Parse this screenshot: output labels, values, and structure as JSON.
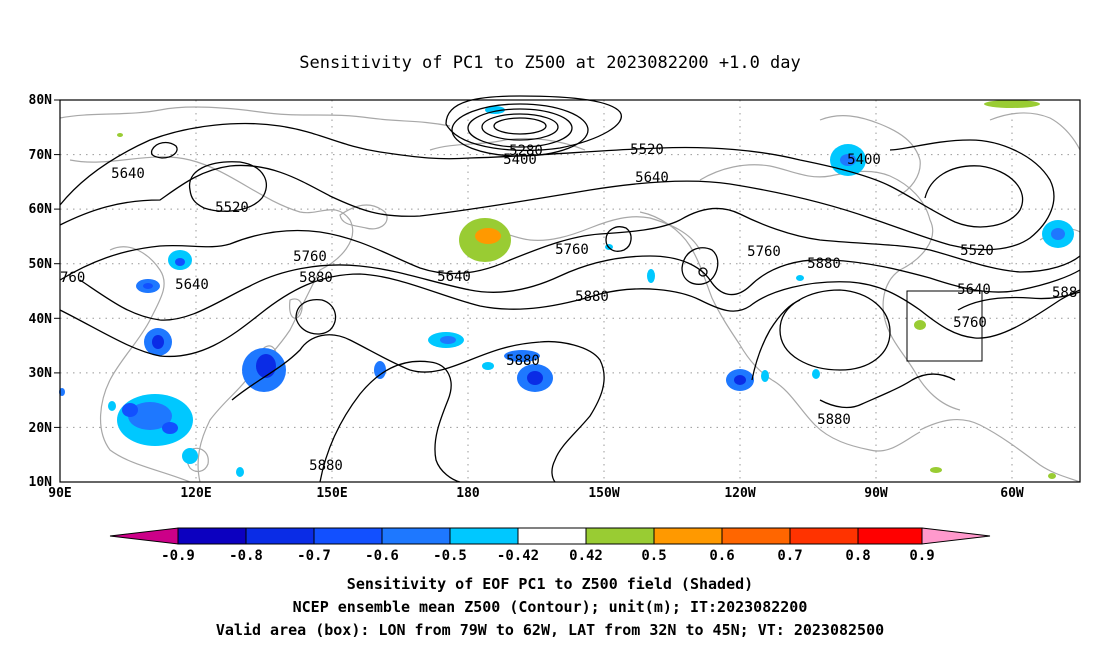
{
  "title": "Sensitivity of PC1 to Z500 at 2023082200 +1.0 day",
  "axes": {
    "lon_ticks": [
      "90E",
      "120E",
      "150E",
      "180",
      "150W",
      "120W",
      "90W",
      "60W"
    ],
    "lat_ticks": [
      "80N",
      "70N",
      "60N",
      "50N",
      "40N",
      "30N",
      "20N",
      "10N"
    ],
    "lon_range_east": [
      90,
      315
    ],
    "lat_range": [
      10,
      80
    ],
    "grid": "dotted"
  },
  "contour_labels": [
    "5280",
    "5400",
    "5400",
    "5520",
    "5520",
    "5520",
    "5640",
    "5640",
    "5640",
    "5640",
    "5640",
    "5760",
    "5760",
    "5760",
    "5760",
    "760",
    "5880",
    "5880",
    "5880",
    "5880",
    "5880",
    "5880",
    "588"
  ],
  "colorbar": {
    "labels": [
      "-0.9",
      "-0.8",
      "-0.7",
      "-0.6",
      "-0.5",
      "-0.42",
      "0.42",
      "0.5",
      "0.6",
      "0.7",
      "0.8",
      "0.9"
    ],
    "colors": [
      "#0c00c0",
      "#0a2ce6",
      "#1250ff",
      "#1e78ff",
      "#00c8ff",
      "#ffffff",
      "#99cc33",
      "#ff9900",
      "#ff6600",
      "#ff3300",
      "#ff0000"
    ],
    "low_end_color": "#cc0088",
    "high_end_color": "#ff99cc"
  },
  "caption": {
    "line1": "Sensitivity of EOF PC1 to Z500 field (Shaded)",
    "line2": "NCEP ensemble mean Z500 (Contour); unit(m); IT:2023082200",
    "line3": "Valid area (box): LON from 79W to 62W, LAT from 32N to 45N; VT: 2023082500"
  },
  "valid_box": {
    "lon_west": -79,
    "lon_east": -62,
    "lat_south": 32,
    "lat_north": 45
  }
}
